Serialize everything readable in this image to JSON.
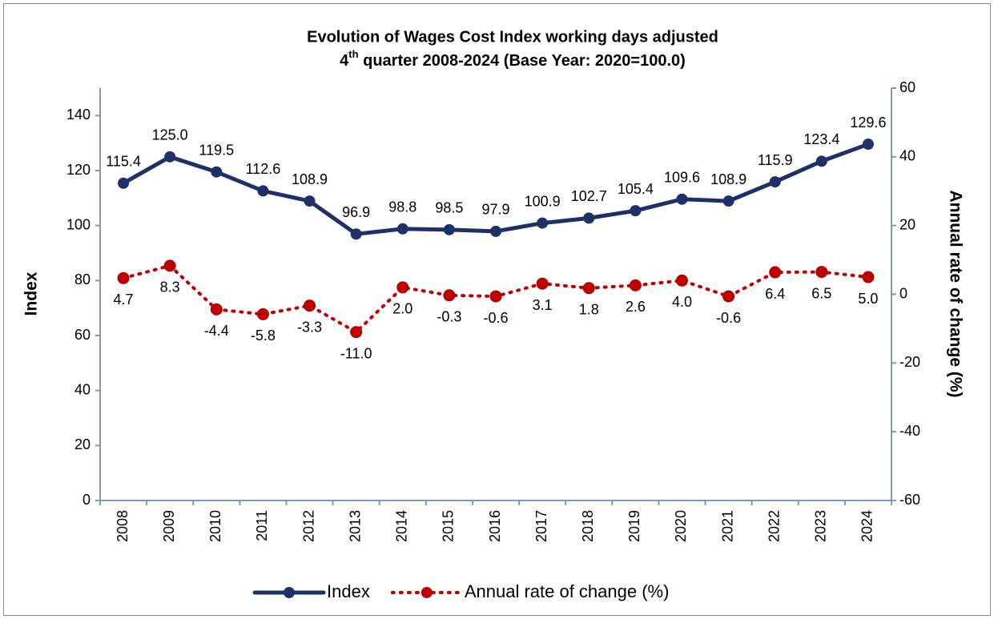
{
  "chart_data": {
    "type": "line",
    "title": {
      "line1": "Evolution of Wages Cost Index working days adjusted",
      "line2": [
        "4",
        "th",
        " quarter 2008-2024 (Base Year: 2020=100.0)"
      ]
    },
    "y_label": "Index",
    "y2_label": "Annual rate of change (%)",
    "categories": [
      "2008",
      "2009",
      "2010",
      "2011",
      "2012",
      "2013",
      "2014",
      "2015",
      "2016",
      "2017",
      "2018",
      "2019",
      "2020",
      "2021",
      "2022",
      "2023",
      "2024"
    ],
    "series": [
      {
        "name": "Index",
        "color": "#1f3068",
        "axis": "y",
        "style": "solid",
        "values": [
          115.4,
          125.0,
          119.5,
          112.6,
          108.9,
          96.9,
          98.8,
          98.5,
          97.9,
          100.9,
          102.7,
          105.4,
          109.6,
          108.9,
          115.9,
          123.4,
          129.6
        ],
        "value_labels": [
          "115.4",
          "125.0",
          "119.5",
          "112.6",
          "108.9",
          "96.9",
          "98.8",
          "98.5",
          "97.9",
          "100.9",
          "102.7",
          "105.4",
          "109.6",
          "108.9",
          "115.9",
          "123.4",
          "129.6"
        ]
      },
      {
        "name": "Annual rate of change (%)",
        "color": "#c00000",
        "axis": "y2",
        "style": "dotted",
        "values": [
          4.7,
          8.3,
          -4.4,
          -5.8,
          -3.3,
          -11.0,
          2.0,
          -0.3,
          -0.6,
          3.1,
          1.8,
          2.6,
          4.0,
          -0.6,
          6.4,
          6.5,
          5.0
        ],
        "value_labels": [
          "4.7",
          "8.3",
          "-4.4",
          "-5.8",
          "-3.3",
          "-11.0",
          "2.0",
          "-0.3",
          "-0.6",
          "3.1",
          "1.8",
          "2.6",
          "4.0",
          "-0.6",
          "6.4",
          "6.5",
          "5.0"
        ]
      }
    ],
    "ylim": [
      0,
      150
    ],
    "yticks": [
      0,
      20,
      40,
      60,
      80,
      100,
      120,
      140
    ],
    "y2lim": [
      -60,
      60
    ],
    "y2ticks": [
      -60,
      -40,
      -20,
      0,
      20,
      40,
      60
    ],
    "legend": "bottom"
  }
}
